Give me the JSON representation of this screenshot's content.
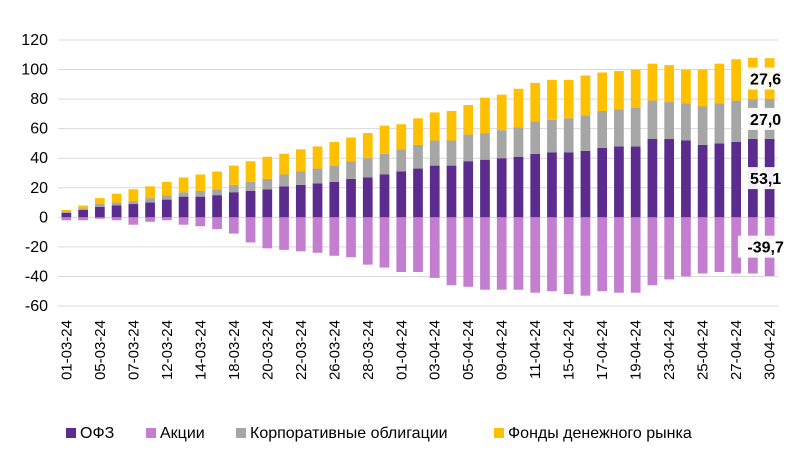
{
  "colors": {
    "ofz": "#5B2C8E",
    "stocks": "#C47ED0",
    "corporate": "#A6A6A6",
    "money_market": "#FFC000"
  },
  "chart_data": {
    "type": "bar",
    "stacked": true,
    "ylim": [
      -60,
      120
    ],
    "yticks": [
      -60,
      -40,
      -20,
      0,
      20,
      40,
      60,
      80,
      100,
      120
    ],
    "grid": true,
    "legend": "bottom",
    "categories": [
      "01-03-24",
      "04-03-24",
      "05-03-24",
      "06-03-24",
      "07-03-24",
      "11-03-24",
      "12-03-24",
      "13-03-24",
      "14-03-24",
      "15-03-24",
      "18-03-24",
      "19-03-24",
      "20-03-24",
      "21-03-24",
      "22-03-24",
      "25-03-24",
      "26-03-24",
      "27-03-24",
      "28-03-24",
      "29-03-24",
      "01-04-24",
      "02-04-24",
      "03-04-24",
      "04-04-24",
      "05-04-24",
      "08-04-24",
      "09-04-24",
      "10-04-24",
      "11-04-24",
      "12-04-24",
      "15-04-24",
      "16-04-24",
      "17-04-24",
      "18-04-24",
      "19-04-24",
      "22-04-24",
      "23-04-24",
      "24-04-24",
      "25-04-24",
      "26-04-24",
      "27-04-24",
      "29-04-24",
      "30-04-24"
    ],
    "xtick_labels": [
      "01-03-24",
      "05-03-24",
      "07-03-24",
      "12-03-24",
      "14-03-24",
      "18-03-24",
      "20-03-24",
      "22-03-24",
      "26-03-24",
      "28-03-24",
      "01-04-24",
      "03-04-24",
      "05-04-24",
      "09-04-24",
      "11-04-24",
      "15-04-24",
      "17-04-24",
      "19-04-24",
      "23-04-24",
      "25-04-24",
      "27-04-24",
      "30-04-24"
    ],
    "series": [
      {
        "name": "ОФЗ",
        "key": "ofz",
        "values": [
          3,
          5,
          7,
          8,
          9,
          10,
          12,
          14,
          14,
          15,
          17,
          18,
          19,
          21,
          22,
          23,
          24,
          26,
          27,
          29,
          31,
          33,
          35,
          35,
          38,
          39,
          40,
          41,
          43,
          44,
          44,
          45,
          47,
          48,
          48,
          53,
          53,
          52,
          49,
          50,
          51,
          53,
          53.1
        ]
      },
      {
        "name": "Акции",
        "key": "stocks",
        "values": [
          -2,
          -2,
          -1,
          -2,
          -5,
          -3,
          -2,
          -5,
          -6,
          -8,
          -11,
          -17,
          -21,
          -22,
          -23,
          -24,
          -26,
          -27,
          -32,
          -34,
          -37,
          -37,
          -41,
          -46,
          -47,
          -49,
          -49,
          -49,
          -51,
          -50,
          -52,
          -53,
          -50,
          -51,
          -51,
          -46,
          -42,
          -40,
          -38,
          -37,
          -38,
          -38,
          -39.7
        ]
      },
      {
        "name": "Корпоративные облигации",
        "key": "corporate",
        "values": [
          1,
          1,
          2,
          2,
          2,
          3,
          3,
          3,
          4,
          4,
          5,
          6,
          7,
          8,
          9,
          10,
          11,
          12,
          13,
          14,
          15,
          16,
          17,
          17,
          18,
          18,
          19,
          20,
          22,
          22,
          23,
          24,
          25,
          25,
          26,
          26,
          25,
          25,
          26,
          27,
          28,
          27,
          27.0
        ]
      },
      {
        "name": "Фонды денежного рынка",
        "key": "money_market",
        "values": [
          1,
          2,
          4,
          6,
          8,
          8,
          9,
          10,
          11,
          12,
          13,
          14,
          15,
          14,
          15,
          15,
          16,
          16,
          17,
          19,
          17,
          18,
          19,
          20,
          20,
          24,
          24,
          26,
          26,
          27,
          26,
          27,
          26,
          26,
          26,
          25,
          25,
          23,
          25,
          27,
          28,
          28,
          27.6
        ]
      }
    ],
    "data_labels": [
      {
        "series": "money_market",
        "text": "27,6"
      },
      {
        "series": "corporate",
        "text": "27,0"
      },
      {
        "series": "ofz",
        "text": "53,1"
      },
      {
        "series": "stocks",
        "text": "-39,7"
      }
    ]
  }
}
